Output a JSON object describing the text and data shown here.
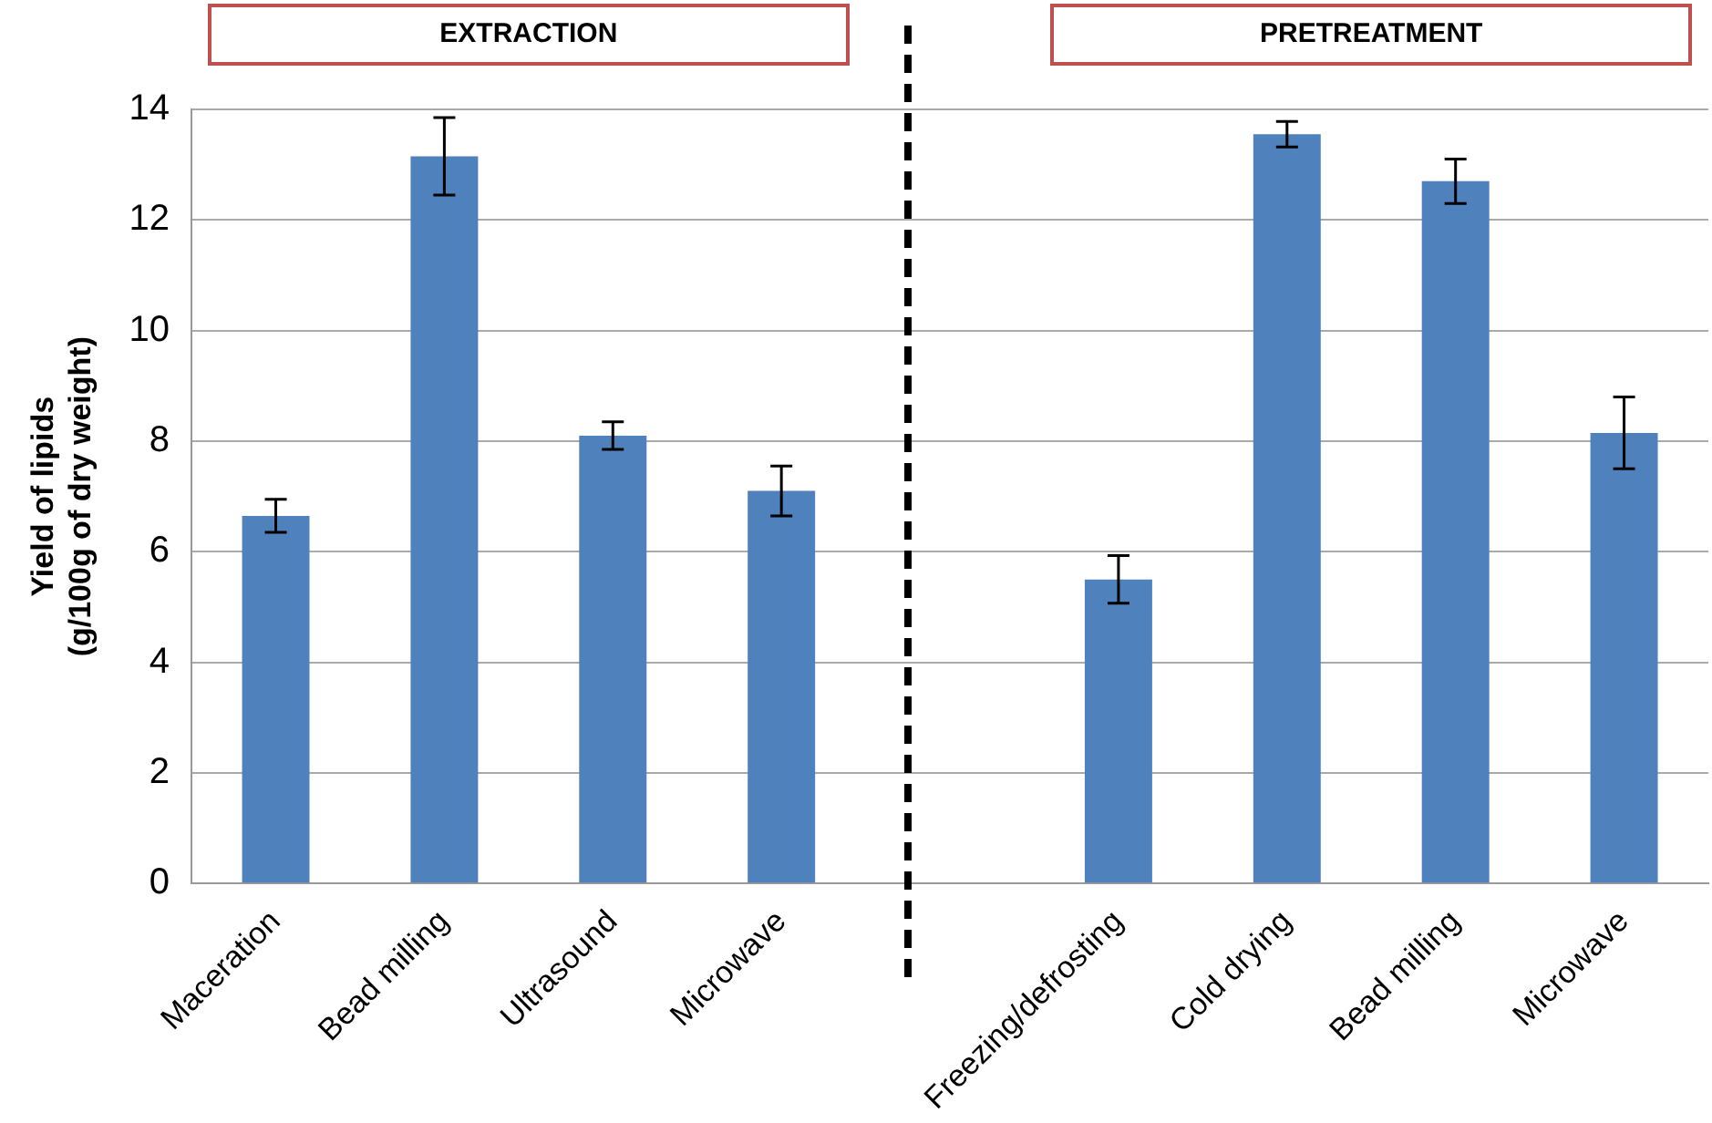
{
  "chart_data": {
    "type": "bar",
    "ylabel": "Yield of lipids\n(g/100g of dry weight)",
    "categories": [
      "Maceration",
      "Bead milling",
      "Ultrasound",
      "Microwave",
      null,
      "Freezing/defrosting",
      "Cold drying",
      "Bead milling",
      "Microwave"
    ],
    "values": [
      6.65,
      13.15,
      8.1,
      7.1,
      null,
      5.5,
      13.55,
      12.7,
      8.15
    ],
    "errors": [
      0.3,
      0.7,
      0.25,
      0.45,
      null,
      0.43,
      0.23,
      0.4,
      0.65
    ],
    "color": "#4f81bd",
    "ylim": [
      0,
      14
    ],
    "yticks": [
      0,
      2,
      4,
      6,
      8,
      10,
      12,
      14
    ],
    "grid": "y",
    "legend": false,
    "annotations": [
      "EXTRACTION",
      "PRETREATMENT"
    ]
  }
}
